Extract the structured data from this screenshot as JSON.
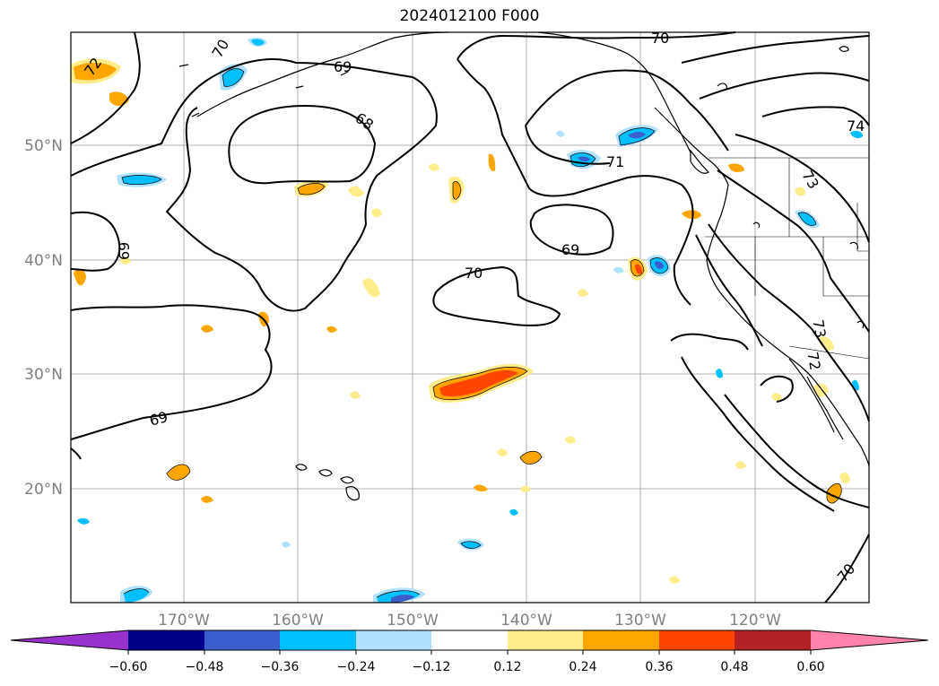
{
  "title": "2024012100 F000",
  "map": {
    "lat_ticks": [
      "50°N",
      "40°N",
      "30°N",
      "20°N"
    ],
    "lon_ticks": [
      "170°W",
      "160°W",
      "150°W",
      "140°W",
      "130°W",
      "120°W"
    ],
    "contour_labels": [
      "72",
      "70",
      "69",
      "68",
      "71",
      "74",
      "73",
      "69",
      "70",
      "69",
      "69",
      "73",
      "72",
      "70",
      "71"
    ],
    "colors": {
      "land": "#000000",
      "grid": "#b0b0b0",
      "contour": "#000000"
    }
  },
  "colorbar": {
    "ticks": [
      "−0.60",
      "−0.48",
      "−0.36",
      "−0.24",
      "−0.12",
      "0.12",
      "0.24",
      "0.36",
      "0.48",
      "0.60"
    ],
    "colors": [
      "#9932cc",
      "#00008b",
      "#3a5fcd",
      "#00bfff",
      "#b0e2ff",
      "#ffffff",
      "#ffec8b",
      "#ffa500",
      "#ff4500",
      "#b22222",
      "#ff82ab"
    ]
  }
}
